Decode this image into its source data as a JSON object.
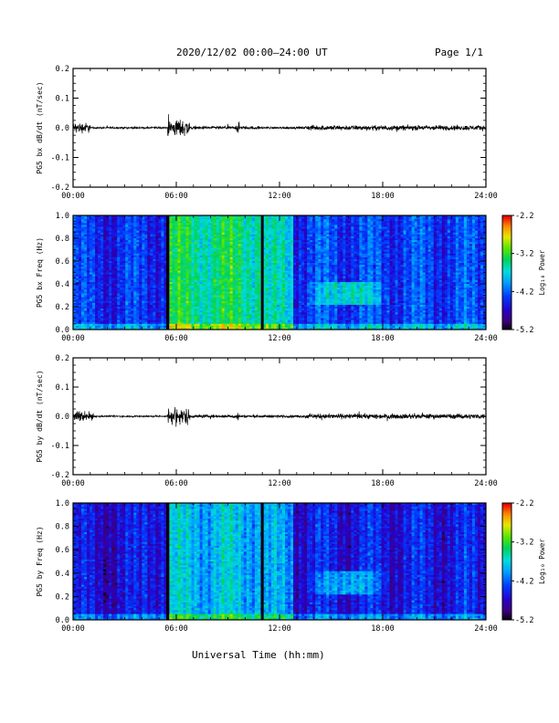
{
  "header": {
    "title": "2020/12/02  00:00–24:00 UT",
    "page": "Page 1/1"
  },
  "footer": {
    "xlabel": "Universal Time (hh:mm)"
  },
  "chart_data": [
    {
      "type": "line",
      "ylabel": "PG5 bx dB/dt (nT/sec)",
      "xlabel": "",
      "x_ticks": [
        "00:00",
        "06:00",
        "12:00",
        "18:00",
        "24:00"
      ],
      "y_ticks": [
        "0.2",
        "0.1",
        "0.0",
        "-0.1",
        "-0.2"
      ],
      "xlim": [
        0,
        24
      ],
      "ylim": [
        -0.2,
        0.2
      ],
      "series_color": "#000000",
      "segments": [
        {
          "x": [
            0.0,
            1.0
          ],
          "amp": 0.025
        },
        {
          "x": [
            1.0,
            5.5
          ],
          "amp": 0.004
        },
        {
          "x": [
            5.5,
            6.8
          ],
          "amp": 0.04
        },
        {
          "x": [
            6.8,
            9.5
          ],
          "amp": 0.007
        },
        {
          "x": [
            9.5,
            9.7
          ],
          "amp": 0.03
        },
        {
          "x": [
            9.7,
            11.0
          ],
          "amp": 0.007
        },
        {
          "x": [
            11.0,
            13.5
          ],
          "amp": 0.005
        },
        {
          "x": [
            13.5,
            24.0
          ],
          "amp": 0.012
        }
      ]
    },
    {
      "type": "heatmap",
      "ylabel": "PG5 bx Freq (Hz)",
      "x_ticks": [
        "00:00",
        "06:00",
        "12:00",
        "18:00",
        "24:00"
      ],
      "y_ticks": [
        "1.0",
        "0.8",
        "0.6",
        "0.4",
        "0.2",
        "0.0"
      ],
      "xlim": [
        0,
        24
      ],
      "ylim": [
        0,
        1.0
      ],
      "colorbar": {
        "label": "Log₁₀ Power",
        "ticks": [
          "-2.2",
          "-3.2",
          "-4.2",
          "-5.2"
        ],
        "range": [
          -5.2,
          -2.2
        ]
      },
      "gaps_hours": [
        5.5,
        11.0
      ],
      "features": [
        {
          "x": [
            0,
            4.0
          ],
          "base": -4.4
        },
        {
          "x": [
            4.0,
            5.4
          ],
          "base": -4.35
        },
        {
          "x": [
            5.6,
            11.0
          ],
          "base": -3.4
        },
        {
          "x": [
            11.1,
            12.8
          ],
          "base": -3.7
        },
        {
          "x": [
            12.8,
            24
          ],
          "base": -4.3
        },
        {
          "x": [
            13.5,
            18.5
          ],
          "f": [
            0.22,
            0.42
          ],
          "boost": 0.9
        }
      ]
    },
    {
      "type": "line",
      "ylabel": "PG5 by dB/dt (nT/sec)",
      "xlabel": "",
      "x_ticks": [
        "00:00",
        "06:00",
        "12:00",
        "18:00",
        "24:00"
      ],
      "y_ticks": [
        "0.2",
        "0.1",
        "0.0",
        "-0.1",
        "-0.2"
      ],
      "xlim": [
        0,
        24
      ],
      "ylim": [
        -0.2,
        0.2
      ],
      "series_color": "#000000",
      "segments": [
        {
          "x": [
            0.0,
            1.2
          ],
          "amp": 0.025
        },
        {
          "x": [
            1.2,
            5.5
          ],
          "amp": 0.004
        },
        {
          "x": [
            5.5,
            6.8
          ],
          "amp": 0.04
        },
        {
          "x": [
            6.8,
            9.5
          ],
          "amp": 0.007
        },
        {
          "x": [
            9.5,
            9.7
          ],
          "amp": 0.025
        },
        {
          "x": [
            9.7,
            13.5
          ],
          "amp": 0.006
        },
        {
          "x": [
            13.5,
            24.0
          ],
          "amp": 0.012
        }
      ]
    },
    {
      "type": "heatmap",
      "ylabel": "PG5 by Freq (Hz)",
      "x_ticks": [
        "00:00",
        "06:00",
        "12:00",
        "18:00",
        "24:00"
      ],
      "y_ticks": [
        "1.0",
        "0.8",
        "0.6",
        "0.4",
        "0.2",
        "0.0"
      ],
      "xlim": [
        0,
        24
      ],
      "ylim": [
        0,
        1.0
      ],
      "colorbar": {
        "label": "Log₁₀ Power",
        "ticks": [
          "-2.2",
          "-3.2",
          "-4.2",
          "-5.2"
        ],
        "range": [
          -5.2,
          -2.2
        ]
      },
      "gaps_hours": [
        5.5,
        11.0
      ],
      "features": [
        {
          "x": [
            0,
            4.0
          ],
          "base": -4.6
        },
        {
          "x": [
            4.0,
            5.4
          ],
          "base": -4.4
        },
        {
          "x": [
            5.6,
            11.0
          ],
          "base": -3.8
        },
        {
          "x": [
            11.1,
            12.8
          ],
          "base": -4.0
        },
        {
          "x": [
            12.8,
            24
          ],
          "base": -4.5
        },
        {
          "x": [
            13.5,
            18.5
          ],
          "f": [
            0.22,
            0.42
          ],
          "boost": 0.8
        }
      ]
    }
  ]
}
